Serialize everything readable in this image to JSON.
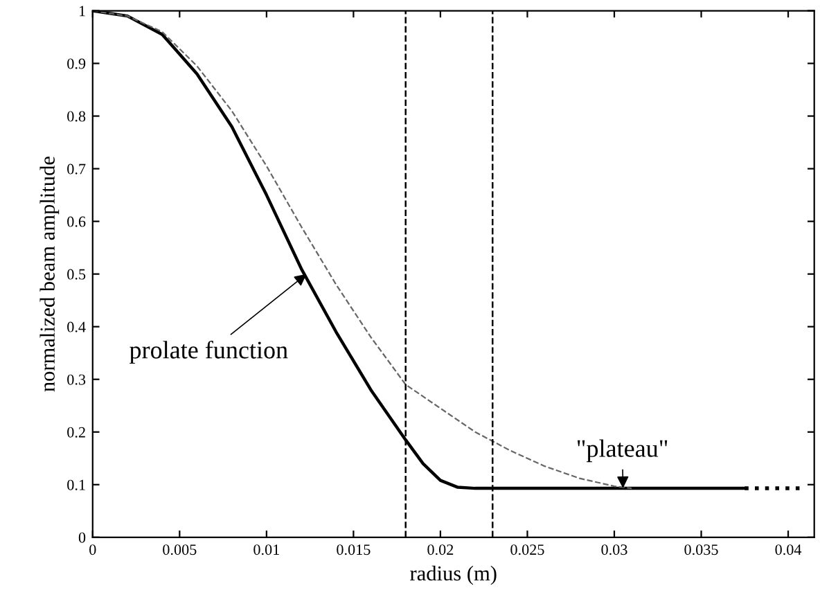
{
  "chart_data": {
    "type": "line",
    "xlabel": "radius (m)",
    "ylabel": "normalized beam amplitude",
    "series": [
      {
        "color": "#000000",
        "line_style": "solid",
        "x": [
          0,
          0.002,
          0.004,
          0.006,
          0.008,
          0.01,
          0.012,
          0.014,
          0.016,
          0.018,
          0.019,
          0.02,
          0.021,
          0.022,
          0.025,
          0.03,
          0.0375
        ],
        "values": [
          1,
          0.99,
          0.955,
          0.88,
          0.78,
          0.65,
          0.51,
          0.39,
          0.28,
          0.185,
          0.14,
          0.108,
          0.095,
          0.093,
          0.093,
          0.093,
          0.093
        ]
      },
      {
        "color": "#000000",
        "line_style": "dotted",
        "x": [
          0.0375,
          0.041
        ],
        "values": [
          0.093,
          0.093
        ]
      },
      {
        "color": "#666666",
        "line_style": "dashed",
        "x": [
          0,
          0.002,
          0.004,
          0.006,
          0.008,
          0.01,
          0.012,
          0.014,
          0.016,
          0.018,
          0.02,
          0.022,
          0.024,
          0.026,
          0.028,
          0.03,
          0.031
        ],
        "values": [
          1,
          0.99,
          0.96,
          0.895,
          0.81,
          0.705,
          0.59,
          0.48,
          0.38,
          0.29,
          0.245,
          0.2,
          0.165,
          0.135,
          0.112,
          0.097,
          0.093
        ]
      }
    ],
    "ref_lines": [
      {
        "axis": "x",
        "value": 0.018,
        "line_style": "dashed",
        "color": "#000000"
      },
      {
        "axis": "x",
        "value": 0.023,
        "line_style": "dashed",
        "color": "#000000"
      }
    ],
    "annotations": [
      {
        "text": "prolate function",
        "x": 0.0123,
        "y": 0.5
      },
      {
        "text": "\"plateau\"",
        "x": 0.0305,
        "y": 0.093
      }
    ],
    "xlim": [
      0,
      0.0415
    ],
    "ylim": [
      0,
      1
    ],
    "xticks": [
      0,
      0.005,
      0.01,
      0.015,
      0.02,
      0.025,
      0.03,
      0.035,
      0.04
    ],
    "yticks": [
      0,
      0.1,
      0.2,
      0.3,
      0.4,
      0.5,
      0.6,
      0.7,
      0.8,
      0.9,
      1
    ],
    "grid": false,
    "marker": "none"
  }
}
